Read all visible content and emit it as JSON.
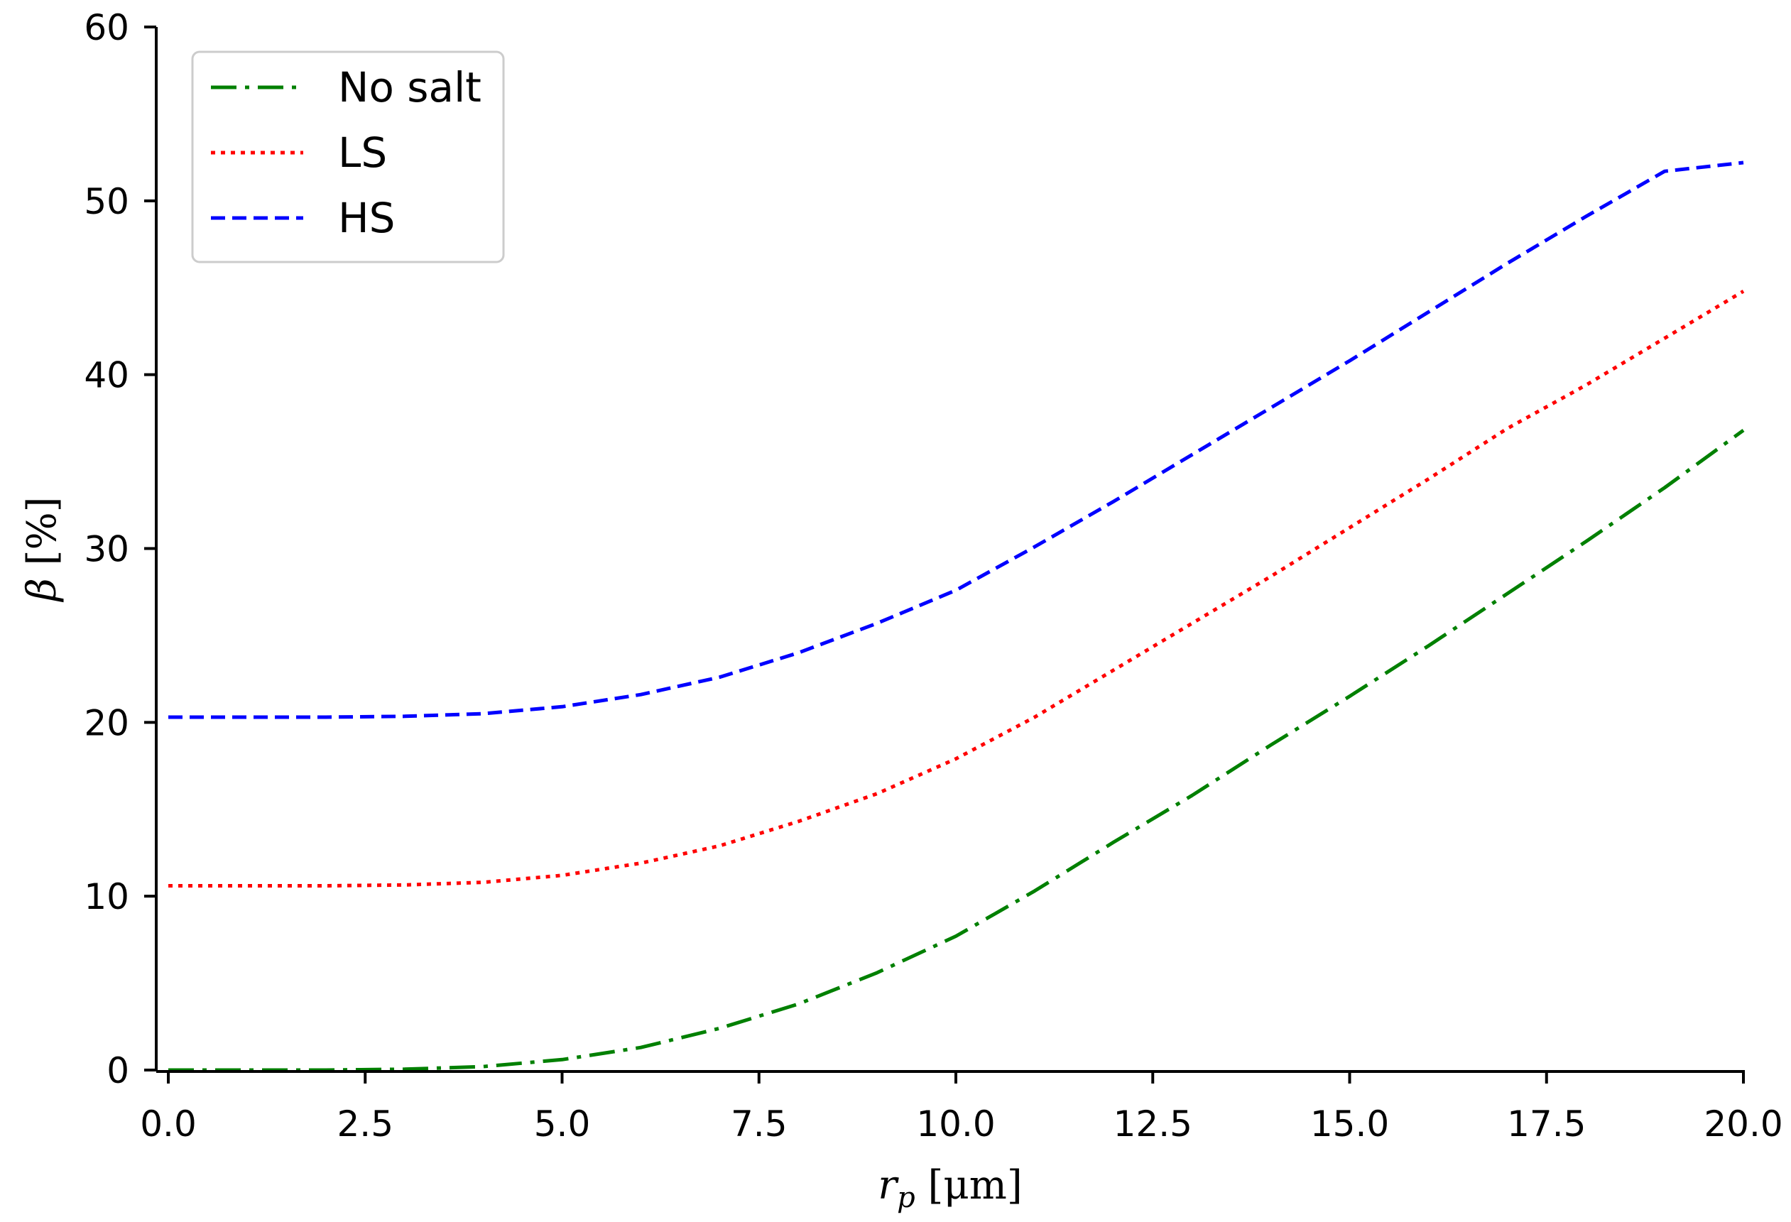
{
  "chart_data": {
    "type": "line",
    "xlabel": "r_p [μm]",
    "xlabel_parts": {
      "var": "r",
      "sub": "p",
      "unit": " [μm]"
    },
    "ylabel": "β [%]",
    "ylabel_parts": {
      "var": "β",
      "unit": " [%]"
    },
    "xlim": [
      0,
      20
    ],
    "ylim": [
      0,
      60
    ],
    "x_ticks": [
      "0.0",
      "2.5",
      "5.0",
      "7.5",
      "10.0",
      "12.5",
      "15.0",
      "17.5",
      "20.0"
    ],
    "y_ticks": [
      "0",
      "10",
      "20",
      "30",
      "40",
      "50",
      "60"
    ],
    "grid": false,
    "legend_position": "top-left",
    "x": [
      0,
      1,
      2,
      3,
      4,
      5,
      6,
      7,
      8,
      9,
      10,
      11,
      12,
      13,
      14,
      15,
      16,
      17,
      18,
      19,
      20
    ],
    "series": [
      {
        "name": "No salt",
        "color": "#008000",
        "dash": "dash-dot",
        "values": [
          0.0,
          0.0,
          0.0,
          0.05,
          0.2,
          0.6,
          1.3,
          2.4,
          3.8,
          5.6,
          7.7,
          10.3,
          13.1,
          15.8,
          18.7,
          21.5,
          24.4,
          27.4,
          30.4,
          33.5,
          36.8
        ]
      },
      {
        "name": "LS",
        "color": "#ff0000",
        "dash": "dotted",
        "values": [
          10.6,
          10.6,
          10.6,
          10.65,
          10.8,
          11.2,
          11.9,
          12.9,
          14.3,
          15.9,
          17.9,
          20.3,
          23.0,
          25.7,
          28.4,
          31.2,
          34.0,
          36.9,
          39.4,
          42.1,
          44.8
        ]
      },
      {
        "name": "HS",
        "color": "#0000ff",
        "dash": "dashed",
        "values": [
          20.3,
          20.3,
          20.3,
          20.35,
          20.5,
          20.9,
          21.6,
          22.6,
          24.0,
          25.7,
          27.6,
          30.1,
          32.7,
          35.4,
          38.1,
          40.8,
          43.6,
          46.4,
          49.1,
          51.7,
          52.2
        ]
      }
    ]
  }
}
